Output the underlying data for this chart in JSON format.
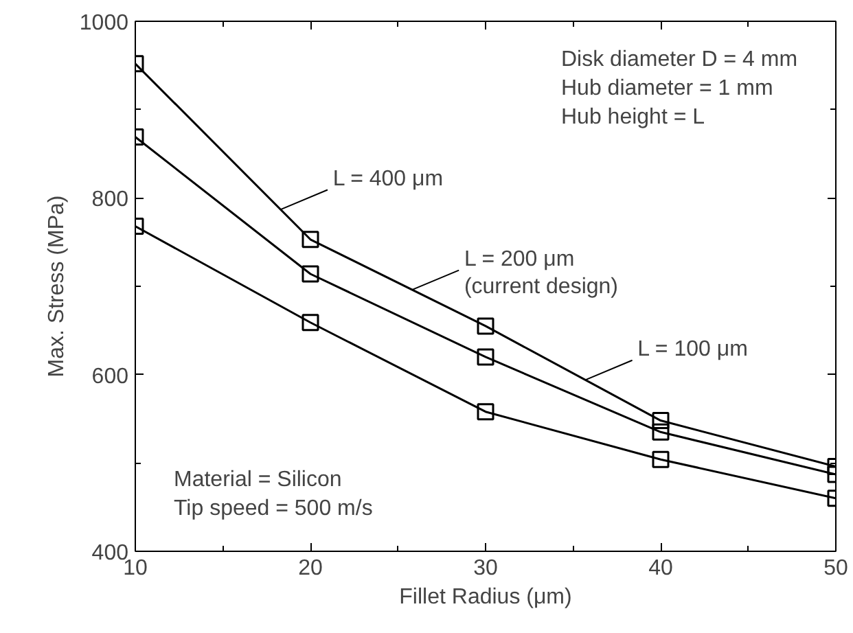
{
  "chart_data": {
    "type": "line",
    "xlabel": "Fillet Radius (μm)",
    "ylabel": "Max. Stress (MPa)",
    "x": [
      10,
      20,
      30,
      40,
      50
    ],
    "series": [
      {
        "color": "#000000",
        "values": [
          952,
          753,
          655,
          548,
          496
        ]
      },
      {
        "color": "#000000",
        "values": [
          869,
          714,
          620,
          535,
          487
        ]
      },
      {
        "color": "#000000",
        "values": [
          768,
          659,
          558,
          504,
          460
        ]
      }
    ],
    "marker": "square",
    "line_style": "solid",
    "grid": false,
    "xlim": [
      10,
      50
    ],
    "xticks": [
      10,
      20,
      30,
      40,
      50
    ],
    "ylim": [
      400,
      1000
    ],
    "yticks": [
      400,
      600,
      800,
      1000
    ],
    "annotations": [
      {
        "text": "L = 400 μm",
        "x": 18.3,
        "y": 787
      },
      {
        "text": "L = 200 μm\n(current design)",
        "x": 25.8,
        "y": 696
      },
      {
        "text": "L = 100 μm",
        "x": 35.7,
        "y": 594
      },
      "Disk diameter D = 4 mm\nHub diameter = 1 mm\nHub height = L",
      "Material = Silicon\nTip speed = 500 m/s"
    ]
  }
}
